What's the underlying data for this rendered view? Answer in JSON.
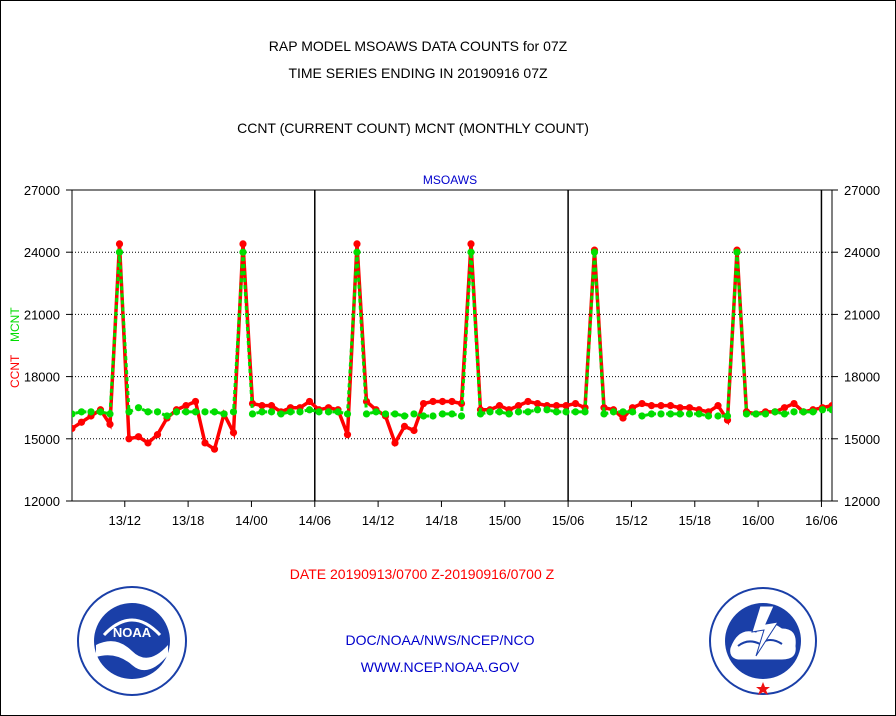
{
  "header": {
    "title_line1": "RAP MODEL MSOAWS DATA COUNTS for 07Z",
    "title_line2": "TIME SERIES ENDING IN 20190916 07Z",
    "subtitle": "CCNT (CURRENT COUNT) MCNT (MONTHLY COUNT)"
  },
  "footer": {
    "date_range": "DATE 20190913/0700 Z-20190916/0700 Z",
    "org": "DOC/NOAA/NWS/NCEP/NCO",
    "url": "WWW.NCEP.NOAA.GOV"
  },
  "logos": {
    "left_text": "NOAA",
    "left_ring": "NATIONAL OCEANIC AND ATMOSPHERIC ADMINISTRATION · U.S. DEPARTMENT OF COMMERCE",
    "right_ring": "NATIONAL WEATHER SERVICE"
  },
  "colors": {
    "ccnt": "#ff0000",
    "mcnt": "#00dd00",
    "axis": "#000000",
    "accent": "#0000cc"
  },
  "chart_data": {
    "type": "line",
    "title": "MSOAWS",
    "ylabel_ccnt": "CCNT",
    "ylabel_mcnt": "MCNT",
    "ylim": [
      12000,
      27000
    ],
    "yticks": [
      12000,
      15000,
      18000,
      21000,
      24000,
      27000
    ],
    "ytick_labels": [
      "12000",
      "15000",
      "18000",
      "21000",
      "24000",
      "27000"
    ],
    "xlim": [
      0,
      72
    ],
    "xticks": [
      {
        "x": 5,
        "label": "13/12"
      },
      {
        "x": 11,
        "label": "13/18"
      },
      {
        "x": 17,
        "label": "14/00"
      },
      {
        "x": 23,
        "label": "14/06"
      },
      {
        "x": 29,
        "label": "14/12"
      },
      {
        "x": 35,
        "label": "14/18"
      },
      {
        "x": 41,
        "label": "15/00"
      },
      {
        "x": 47,
        "label": "15/06"
      },
      {
        "x": 53,
        "label": "15/12"
      },
      {
        "x": 59,
        "label": "15/18"
      },
      {
        "x": 65,
        "label": "16/00"
      },
      {
        "x": 71,
        "label": "16/06"
      }
    ],
    "vlines": [
      23,
      47,
      71
    ],
    "hgrid": [
      15000,
      18000,
      21000,
      24000
    ],
    "series": [
      {
        "name": "CCNT",
        "color": "#ff0000",
        "values": [
          16700,
          15500,
          15800,
          16100,
          16400,
          15700,
          24400,
          15000,
          15100,
          14800,
          15200,
          16000,
          16400,
          16600,
          16800,
          14800,
          14500,
          16200,
          15300,
          24400,
          16700,
          16600,
          16600,
          16300,
          16500,
          16500,
          16800,
          16400,
          16500,
          16400,
          15200,
          24400,
          16800,
          16400,
          16100,
          14800,
          15600,
          15400,
          16700,
          16800,
          16800,
          16800,
          16700,
          24400,
          16400,
          16400,
          16600,
          16400,
          16600,
          16800,
          16700,
          16600,
          16600,
          16600,
          16700,
          16500,
          24100,
          16500,
          16400,
          16000,
          16500,
          16700,
          16600,
          16600,
          16600,
          16500,
          16500,
          16400,
          16300,
          16600,
          15900,
          24100,
          16300,
          16200,
          16300,
          16300,
          16500,
          16700,
          16300,
          16400,
          16500,
          16600
        ],
        "x_start": -1
      },
      {
        "name": "MCNT",
        "color": "#00dd00",
        "values": [
          16400,
          16200,
          16300,
          16300,
          16300,
          16200,
          24000,
          16300,
          16500,
          16300,
          16300,
          16100,
          16300,
          16300,
          16300,
          16300,
          16300,
          16200,
          16300,
          24000,
          16200,
          16300,
          16300,
          16200,
          16300,
          16300,
          16400,
          16300,
          16300,
          16300,
          16200,
          24000,
          16200,
          16300,
          16200,
          16200,
          16100,
          16200,
          16100,
          16100,
          16200,
          16200,
          16100,
          24000,
          16200,
          16300,
          16300,
          16200,
          16300,
          16300,
          16400,
          16400,
          16300,
          16300,
          16300,
          16300,
          24000,
          16200,
          16300,
          16300,
          16300,
          16100,
          16200,
          16200,
          16200,
          16200,
          16200,
          16200,
          16100,
          16100,
          16100,
          24000,
          16200,
          16200,
          16200,
          16300,
          16200,
          16300,
          16300,
          16300,
          16400,
          16400
        ],
        "x_start": -1
      }
    ]
  }
}
